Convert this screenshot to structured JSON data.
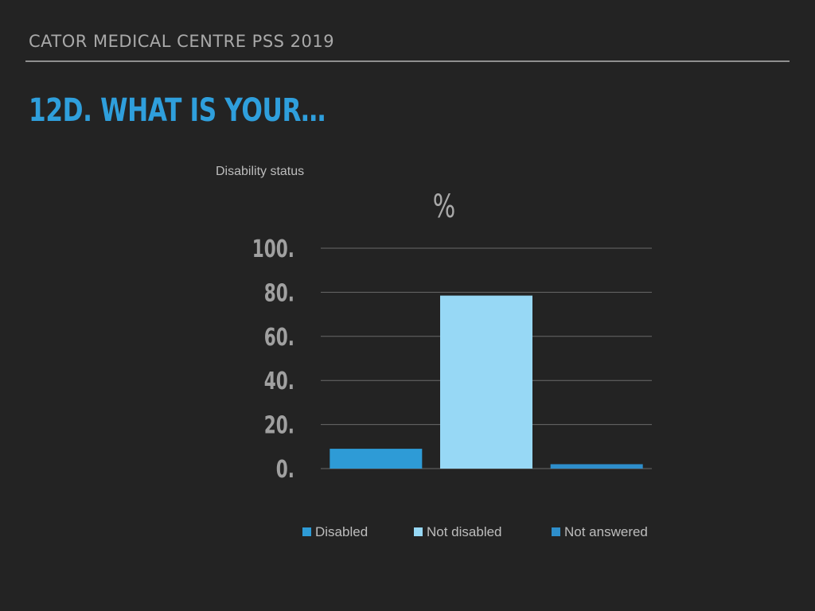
{
  "header": {
    "text": "CATOR MEDICAL CENTRE PSS 2019"
  },
  "slide": {
    "title": "12D. WHAT IS YOUR…"
  },
  "chart_data": {
    "type": "bar",
    "title": "Disability status",
    "unit_label": "%",
    "categories": [
      "Disabled",
      "Not disabled",
      "Not answered"
    ],
    "values": [
      9,
      78.5,
      2
    ],
    "colors": [
      "#2e9bd6",
      "#97d8f5",
      "#2e8ecb"
    ],
    "ylim": [
      0,
      100
    ],
    "yticks": [
      0,
      20,
      40,
      60,
      80,
      100
    ],
    "ytick_labels": [
      "0.",
      "20.",
      "40.",
      "60.",
      "80.",
      "100."
    ],
    "grid": true,
    "legend": [
      "Disabled",
      "Not disabled",
      "Not answered"
    ],
    "legend_position": "bottom"
  }
}
